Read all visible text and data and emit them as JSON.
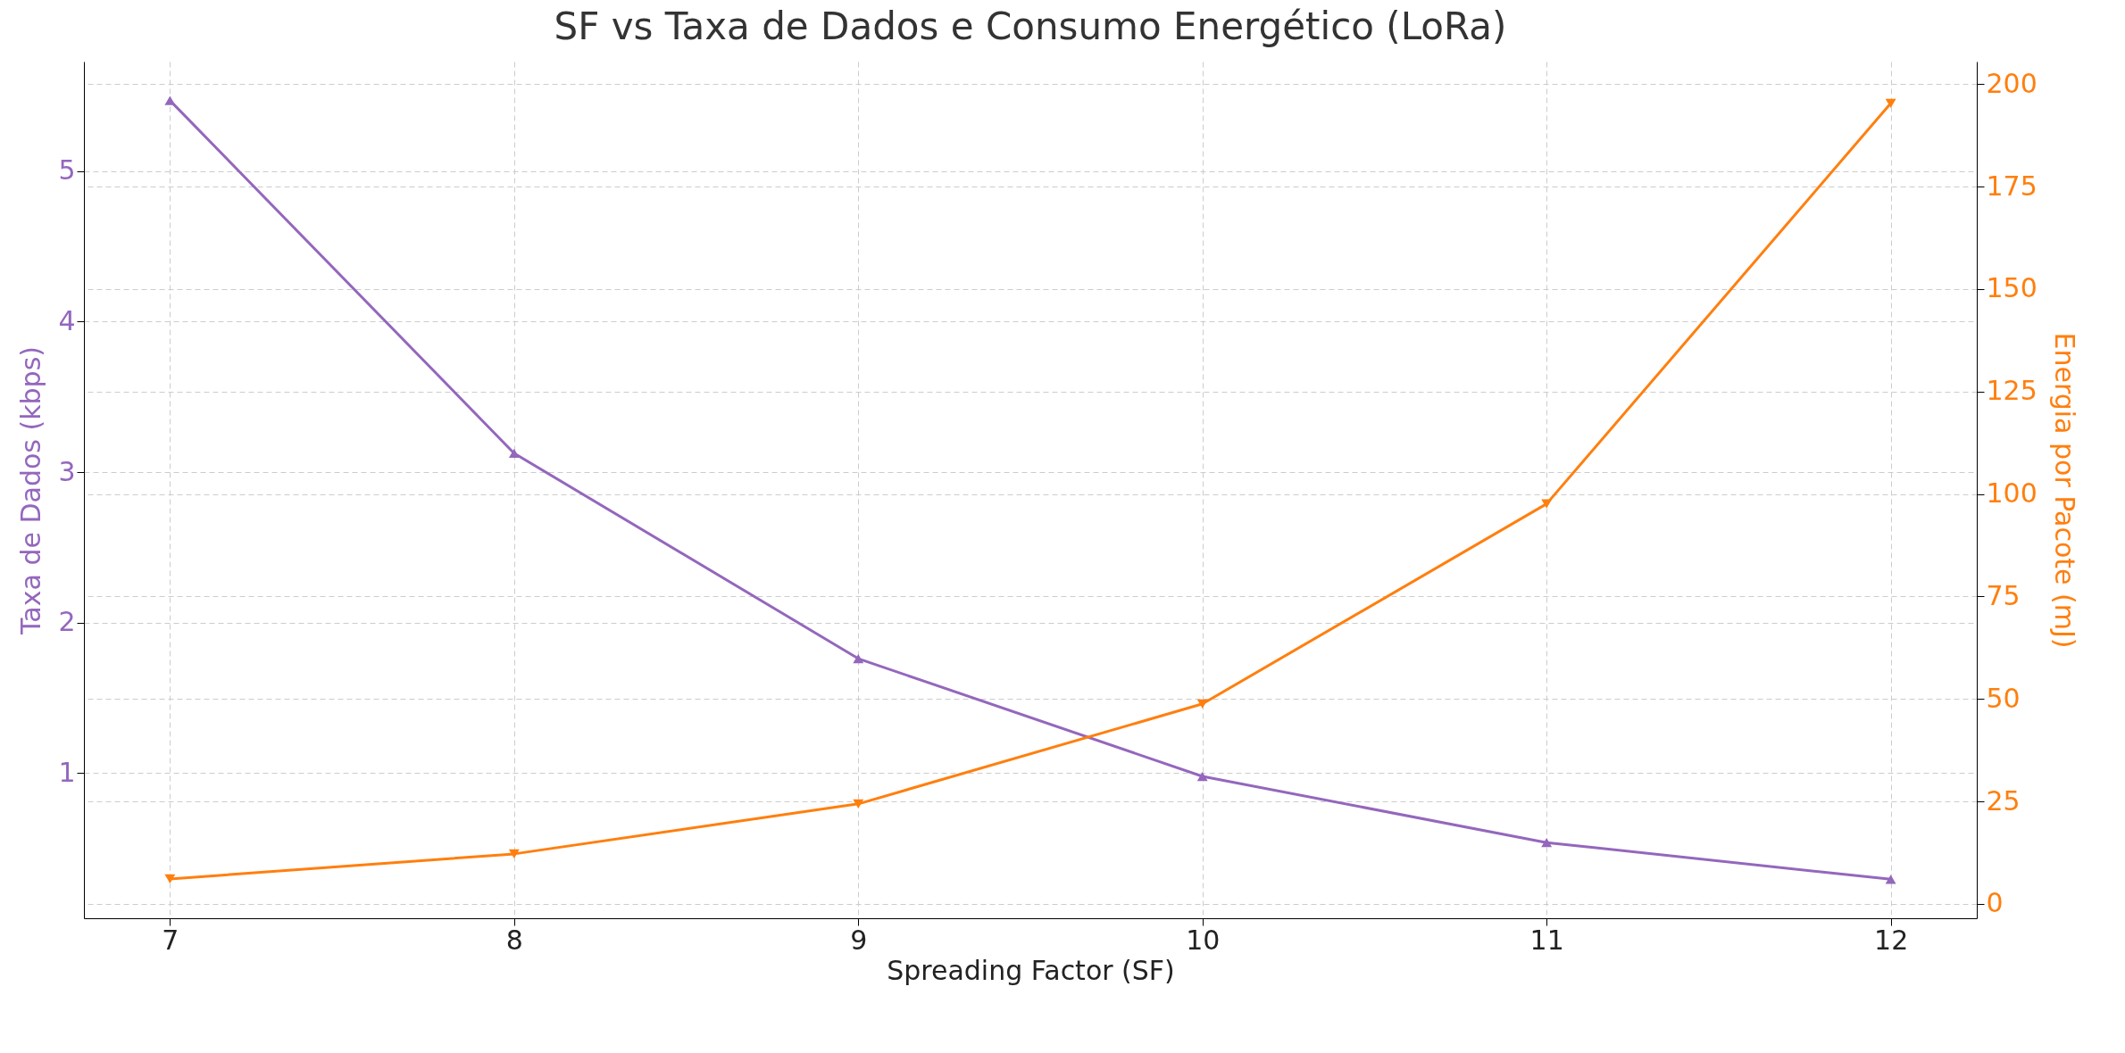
{
  "chart_data": {
    "type": "line",
    "title": "SF vs Taxa de Dados e Consumo Energético (LoRa)",
    "xlabel": "Spreading Factor (SF)",
    "ylabel": "Taxa de Dados (kbps)",
    "y2label": "Energia por Pacote (mJ)",
    "x": [
      7,
      8,
      9,
      10,
      11,
      12
    ],
    "xlim": [
      6.75,
      12.25
    ],
    "xticks": [
      7,
      8,
      9,
      10,
      11,
      12
    ],
    "ylim": [
      0.034,
      5.729
    ],
    "yticks": [
      1,
      2,
      3,
      4,
      5
    ],
    "y2lim": [
      -3.5,
      205.5
    ],
    "y2ticks": [
      0,
      25,
      50,
      75,
      100,
      125,
      150,
      175,
      200
    ],
    "grid": true,
    "marker": "triangle",
    "line_style": "solid",
    "series": [
      {
        "color": "#9467bd",
        "values": [
          5.47,
          3.125,
          1.76,
          0.977,
          0.537,
          0.293
        ]
      },
      {
        "color": "#ff7f0e",
        "axis": "y2",
        "values": [
          6.1,
          12.2,
          24.4,
          48.8,
          97.6,
          195.3
        ]
      }
    ]
  }
}
